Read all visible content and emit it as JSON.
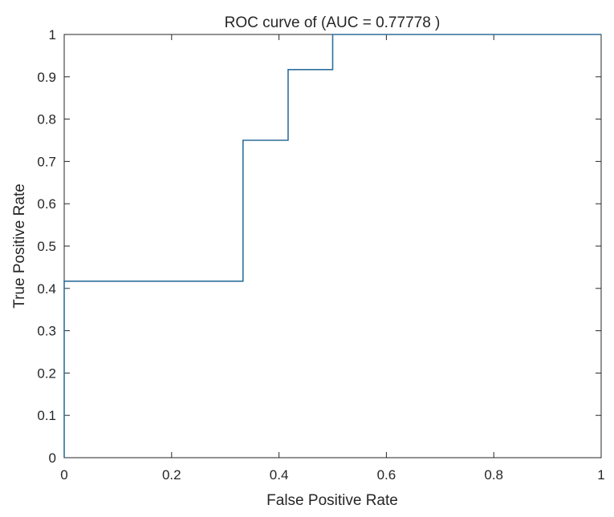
{
  "chart_data": {
    "type": "line",
    "title": "ROC curve of (AUC = 0.77778 )",
    "xlabel": "False Positive Rate",
    "ylabel": "True Positive Rate",
    "xlim": [
      0,
      1
    ],
    "ylim": [
      0,
      1
    ],
    "xticks": [
      0,
      0.2,
      0.4,
      0.6,
      0.8,
      1
    ],
    "xtick_labels": [
      "0",
      "0.2",
      "0.4",
      "0.6",
      "0.8",
      "1"
    ],
    "yticks": [
      0,
      0.1,
      0.2,
      0.3,
      0.4,
      0.5,
      0.6,
      0.7,
      0.8,
      0.9,
      1
    ],
    "ytick_labels": [
      "0",
      "0.1",
      "0.2",
      "0.3",
      "0.4",
      "0.5",
      "0.6",
      "0.7",
      "0.8",
      "0.9",
      "1"
    ],
    "grid": false,
    "series": [
      {
        "color": "#2e6f9a",
        "x": [
          0,
          0,
          0.333,
          0.333,
          0.417,
          0.417,
          0.5,
          0.5,
          1
        ],
        "y": [
          0,
          0.417,
          0.417,
          0.75,
          0.75,
          0.917,
          0.917,
          1,
          1
        ]
      }
    ]
  }
}
